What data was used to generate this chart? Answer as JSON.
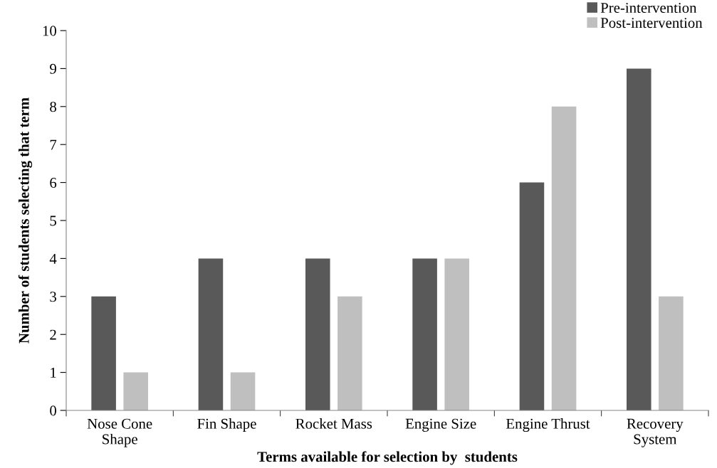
{
  "chart_data": {
    "type": "bar",
    "xlabel": "Terms available for selection by  students",
    "ylabel": "Number of students selecting that term",
    "categories": [
      "Nose Cone\nShape",
      "Fin Shape",
      "Rocket Mass",
      "Engine Size",
      "Engine Thrust",
      "Recovery\nSystem"
    ],
    "series": [
      {
        "name": "Pre-intervention",
        "color": "#595959",
        "values": [
          3,
          4,
          4,
          4,
          6,
          9
        ]
      },
      {
        "name": "Post-intervention",
        "color": "#bfbfbf",
        "values": [
          1,
          1,
          3,
          4,
          8,
          3
        ]
      }
    ],
    "ylim": [
      0,
      10
    ],
    "yticks": [
      0,
      1,
      2,
      3,
      4,
      5,
      6,
      7,
      8,
      9,
      10
    ],
    "grid": false,
    "legend": "top right"
  }
}
